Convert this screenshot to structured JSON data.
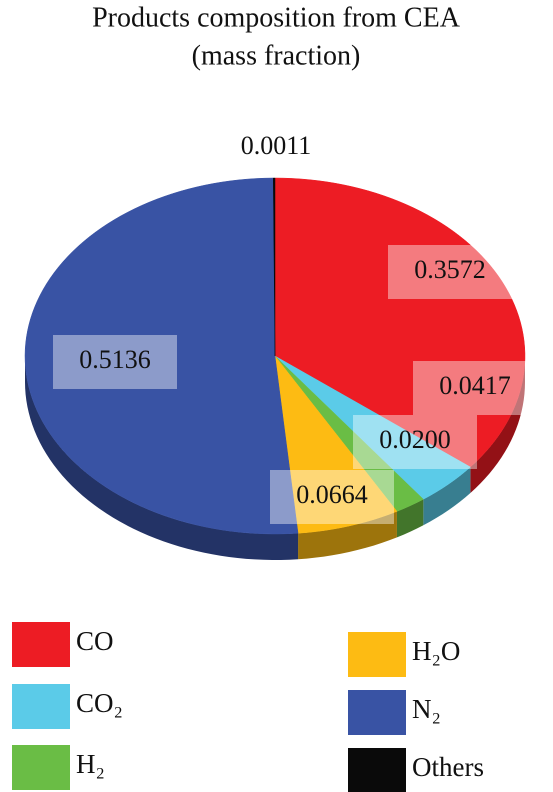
{
  "chart_data": {
    "type": "pie3d",
    "title": "Products composition from CEA",
    "subtitle": "(mass fraction)",
    "categories": [
      "CO",
      "CO₂",
      "H₂",
      "H₂O",
      "N₂",
      "Others"
    ],
    "values": [
      0.3572,
      0.0417,
      0.02,
      0.0664,
      0.5136,
      0.0011
    ],
    "value_labels": [
      "0.3572",
      "0.0417",
      "0.0200",
      "0.0664",
      "0.5136",
      "0.0011"
    ],
    "colors": [
      "#ed1c24",
      "#5bcbe8",
      "#6abd45",
      "#fdbb13",
      "#3953a4",
      "#0a0a0a"
    ]
  }
}
